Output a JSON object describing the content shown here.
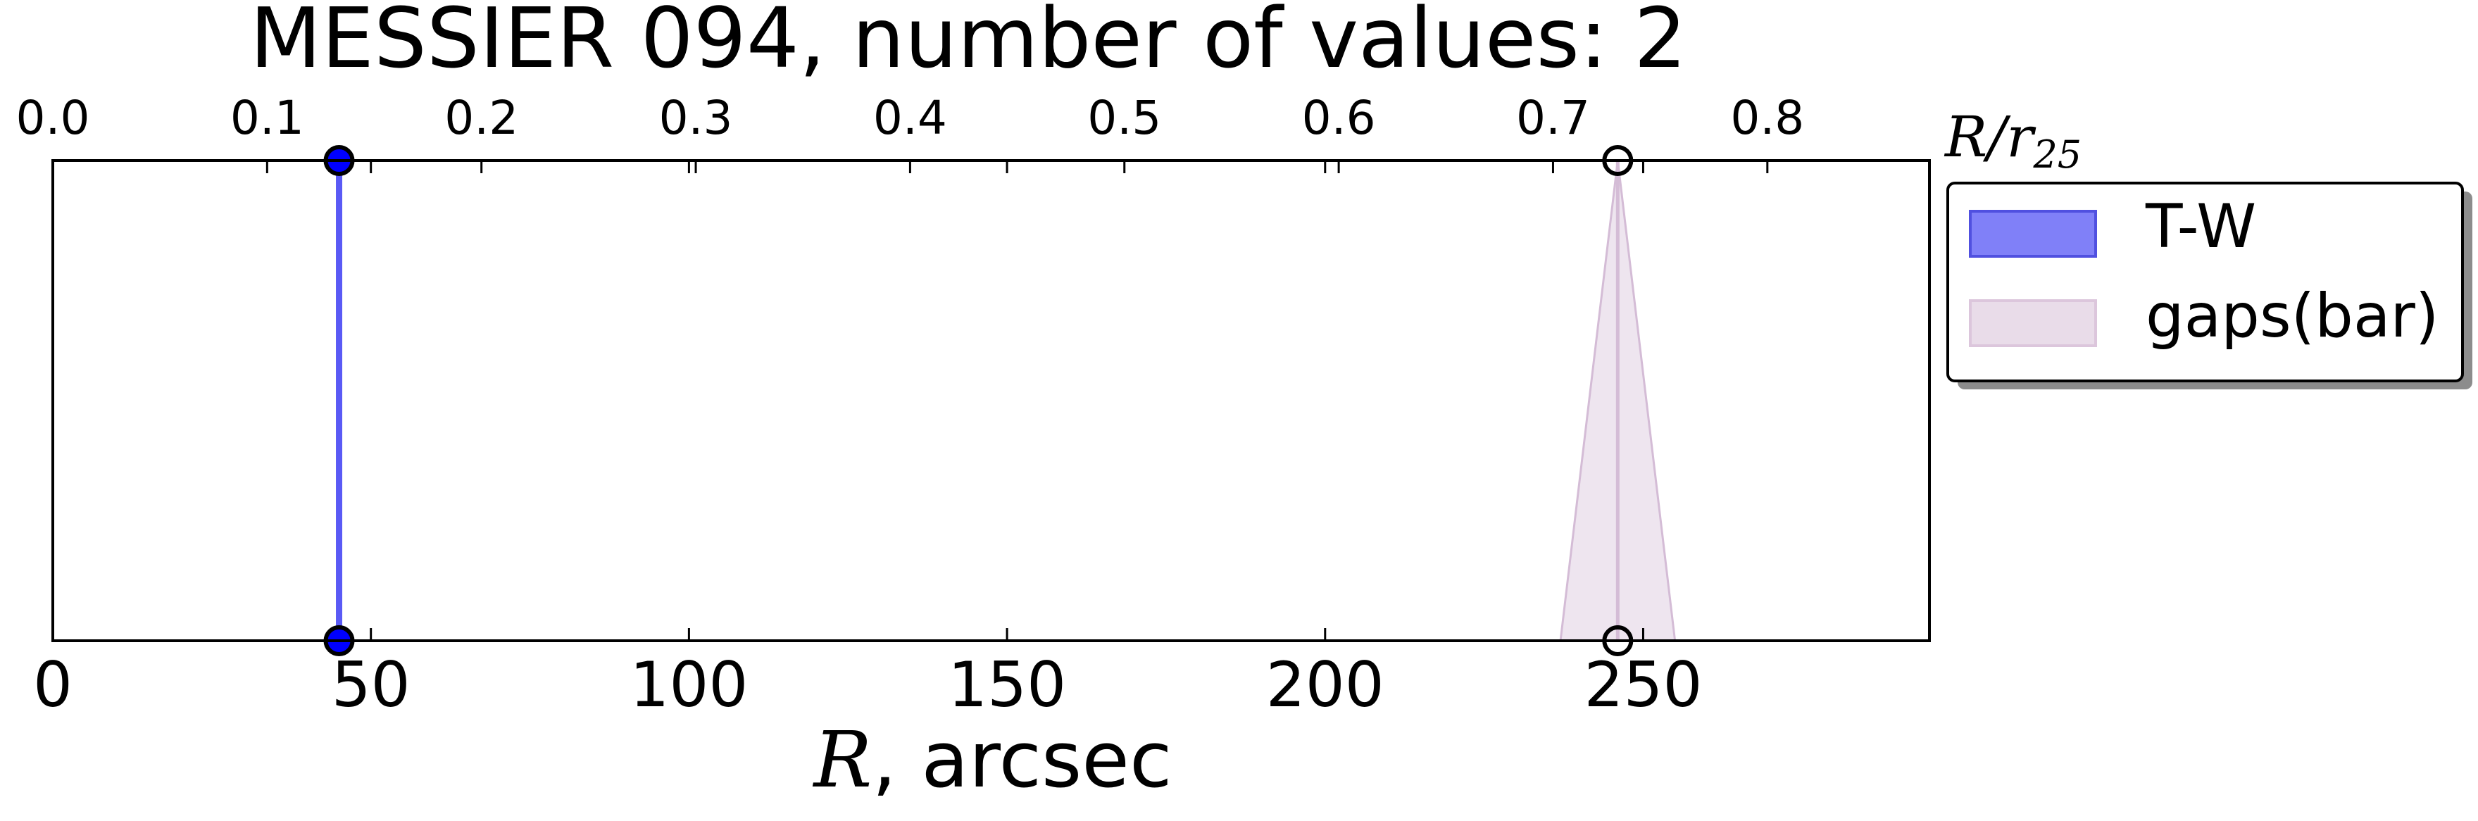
{
  "chart_data": {
    "type": "scatter",
    "title": "MESSIER 094, number of values: 2",
    "xlabel_symbol": "R",
    "xlabel_rest": ", arcsec",
    "xlim": [
      0,
      295
    ],
    "x_ticks": [
      0,
      50,
      100,
      150,
      200,
      250
    ],
    "x_tick_labels": [
      "0",
      "50",
      "100",
      "150",
      "200",
      "250"
    ],
    "top_axis": {
      "label_symbol": "R/r",
      "label_sub": "25",
      "ticks": [
        0.0,
        0.1,
        0.2,
        0.3,
        0.4,
        0.5,
        0.6,
        0.7,
        0.8
      ],
      "tick_labels": [
        "0.0",
        "0.1",
        "0.2",
        "0.3",
        "0.4",
        "0.5",
        "0.6",
        "0.7",
        "0.8"
      ],
      "r25_arcsec": 336.9
    },
    "legend_position": "outside-right-top",
    "series": [
      {
        "name": "T-W",
        "kind": "line",
        "x": 45,
        "half_width": 0,
        "color": "#0000ff",
        "line_color": "#5a5af5",
        "marker_fill": "#0000ff",
        "legend_fill": "#8080f8",
        "legend_edge": "#5050e0"
      },
      {
        "name": "gaps(bar)",
        "kind": "band",
        "x": 246,
        "half_width": 9,
        "color": "#e8dcea",
        "line_color": "#d4bcd6",
        "marker_fill": "none",
        "legend_fill": "#e9dce9",
        "legend_edge": "#dcc6dc"
      }
    ]
  }
}
